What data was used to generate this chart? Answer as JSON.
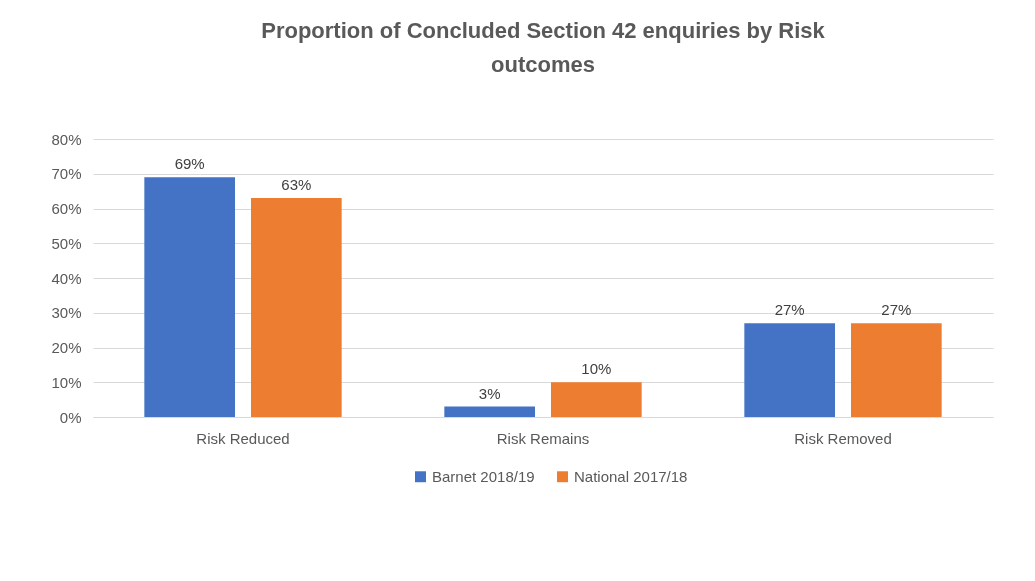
{
  "chart_data": {
    "type": "bar",
    "title": "Proportion of Concluded Section 42 enquiries by Risk outcomes",
    "categories": [
      "Risk Reduced",
      "Risk Remains",
      "Risk Removed"
    ],
    "series": [
      {
        "name": "Barnet 2018/19",
        "color": "#4472c4",
        "values": [
          69,
          3,
          27
        ],
        "value_labels": [
          "69%",
          "3%",
          "27%"
        ]
      },
      {
        "name": "National 2017/18",
        "color": "#ed7d31",
        "values": [
          63,
          10,
          27
        ],
        "value_labels": [
          "63%",
          "10%",
          "27%"
        ]
      }
    ],
    "ylim": [
      0,
      80
    ],
    "yticks": [
      {
        "value": 0,
        "label": "0%"
      },
      {
        "value": 10,
        "label": "10%"
      },
      {
        "value": 20,
        "label": "20%"
      },
      {
        "value": 30,
        "label": "30%"
      },
      {
        "value": 40,
        "label": "40%"
      },
      {
        "value": 50,
        "label": "50%"
      },
      {
        "value": 60,
        "label": "60%"
      },
      {
        "value": 70,
        "label": "70%"
      },
      {
        "value": 80,
        "label": "80%"
      }
    ],
    "grid": "y",
    "legend": "bottom"
  }
}
